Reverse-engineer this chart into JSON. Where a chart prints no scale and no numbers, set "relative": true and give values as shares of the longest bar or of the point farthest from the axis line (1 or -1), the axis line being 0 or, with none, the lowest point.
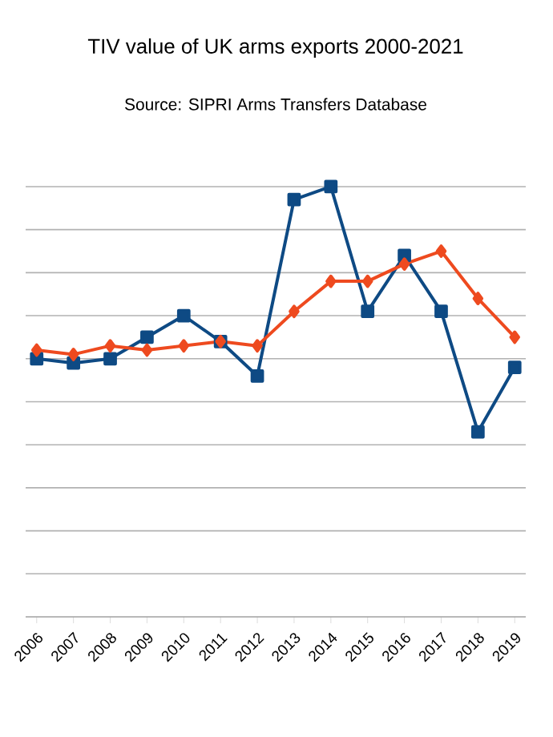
{
  "chart_data": {
    "type": "line",
    "title": "TIV value of UK arms exports 2000-2021",
    "subtitle": "Source: SIPRI Arms Transfers Database",
    "categories": [
      "2006",
      "2007",
      "2008",
      "2009",
      "2010",
      "2011",
      "2012",
      "2013",
      "2014",
      "2015",
      "2016",
      "2017",
      "2018",
      "2019"
    ],
    "relative": true,
    "grid": "y",
    "tick_labels": "x",
    "line_style": "solid",
    "series": [
      {
        "color": "#0e4a84",
        "marker": "square",
        "values": [
          0.6,
          0.59,
          0.6,
          0.65,
          0.7,
          0.64,
          0.56,
          0.97,
          1,
          0.71,
          0.84,
          0.71,
          0.43,
          0.58
        ]
      },
      {
        "color": "#ee4a1f",
        "marker": "diamond",
        "values": [
          0.62,
          0.61,
          0.63,
          0.62,
          0.63,
          0.64,
          0.63,
          0.71,
          0.78,
          0.78,
          0.82,
          0.85,
          0.74,
          0.65
        ]
      }
    ]
  }
}
